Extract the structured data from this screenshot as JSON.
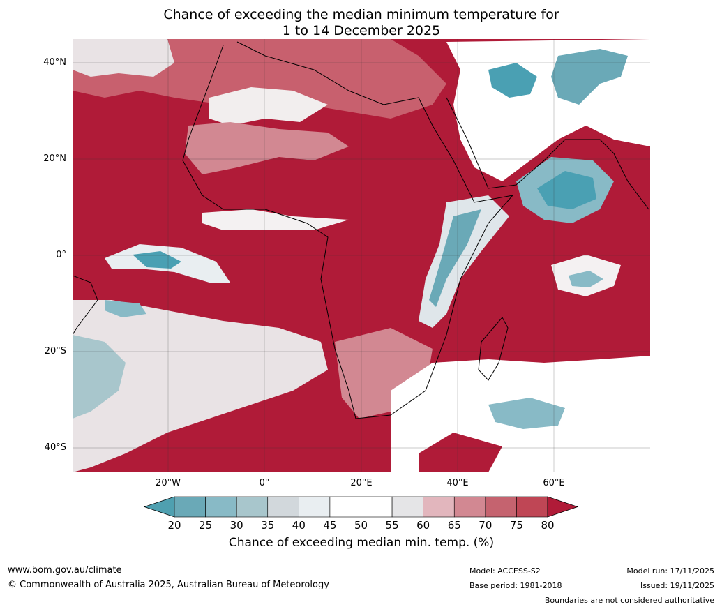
{
  "title": {
    "line1": "Chance of exceeding the median minimum temperature for",
    "line2": "1 to 14 December 2025"
  },
  "map": {
    "latitude_labels": [
      "40°N",
      "20°N",
      "0°",
      "20°S",
      "40°S"
    ],
    "longitude_labels": [
      "20°W",
      "0°",
      "20°E",
      "40°E",
      "60°E"
    ],
    "colors": {
      "high": "#b01b38",
      "mid_high": "#c8606e",
      "neutral": "#ffffff",
      "low": "#4aa0b3"
    }
  },
  "colorbar": {
    "ticks": [
      "20",
      "25",
      "30",
      "35",
      "40",
      "45",
      "50",
      "55",
      "60",
      "65",
      "70",
      "75",
      "80"
    ],
    "colors": [
      "#4fa0b0",
      "#6aa9b7",
      "#88bac6",
      "#a8c6cc",
      "#d2d8dc",
      "#e9eef1",
      "#ffffff",
      "#ffffff",
      "#e5e5e7",
      "#e2b6bd",
      "#d28892",
      "#c5636f",
      "#bf4655",
      "#b01b38"
    ],
    "label": "Chance of exceeding median min. temp. (%)"
  },
  "footer": {
    "website": "www.bom.gov.au/climate",
    "copyright": "© Commonwealth of Australia 2025, Australian Bureau of Meteorology",
    "model": "Model: ACCESS-S2",
    "base_period": "Base period: 1981-2018",
    "model_run": "Model run: 17/11/2025",
    "issued": "Issued: 19/11/2025",
    "disclaimer": "Boundaries are not considered authoritative"
  }
}
